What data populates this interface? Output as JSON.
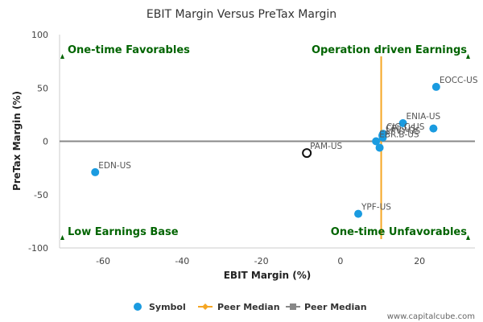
{
  "chart_data": {
    "type": "scatter",
    "title": "EBIT Margin Versus PreTax Margin",
    "xlabel": "EBIT Margin (%)",
    "ylabel": "PreTax Margin (%)",
    "xlim": [
      -71,
      34
    ],
    "ylim": [
      -100,
      100
    ],
    "x_ticks": [
      "-60",
      "-40",
      "-20",
      "0",
      "20"
    ],
    "x_tick_values": [
      -60,
      -40,
      -20,
      0,
      20
    ],
    "y_ticks": [
      "100",
      "50",
      "0",
      "-50",
      "-100"
    ],
    "y_tick_values": [
      100,
      50,
      0,
      -50,
      -100
    ],
    "grid": false,
    "points": [
      {
        "label": "EOCC-US",
        "x": 24.2,
        "y": 51,
        "highlight": false
      },
      {
        "label": "ENIA-US",
        "x": 15.8,
        "y": 17,
        "highlight": false
      },
      {
        "label": "",
        "x": 23.5,
        "y": 12,
        "highlight": false
      },
      {
        "label": "CIG.C-US",
        "x": 10.8,
        "y": 7,
        "highlight": false
      },
      {
        "label": "CPL-US",
        "x": 10.6,
        "y": 5.5,
        "highlight": false
      },
      {
        "label": "LPVY-US",
        "x": 10.7,
        "y": 3.5,
        "highlight": false
      },
      {
        "label": "EBR.B-US",
        "x": 9.0,
        "y": 0,
        "highlight": false
      },
      {
        "label": "",
        "x": 9.9,
        "y": -6,
        "highlight": false
      },
      {
        "label": "PAM-US",
        "x": -8.5,
        "y": -11,
        "highlight": true
      },
      {
        "label": "EDN-US",
        "x": -62,
        "y": -29,
        "highlight": false
      },
      {
        "label": "YPF-US",
        "x": 4.5,
        "y": -68,
        "highlight": false
      }
    ],
    "peer_median": {
      "x": 10.3,
      "y": 0
    },
    "quadrant_labels": {
      "top_left": "One-time Favorables",
      "top_right": "Operation driven Earnings",
      "bottom_left": "Low Earnings Base",
      "bottom_right": "One-time Unfavorables"
    },
    "legend": [
      {
        "label": "Symbol",
        "kind": "dot",
        "color": "#1a9be0"
      },
      {
        "label": "Peer Median",
        "kind": "diamond-line",
        "color": "#f5a623"
      },
      {
        "label": "Peer Median",
        "kind": "square-line",
        "color": "#888888"
      }
    ],
    "colors": {
      "point": "#1a9be0",
      "vertical_median": "#f5a623",
      "horizontal_median": "#888888",
      "quadrant_text": "#006400",
      "highlight_stroke": "#111111"
    },
    "legend_position": "bottom"
  },
  "watermark": "www.capitalcube.com"
}
